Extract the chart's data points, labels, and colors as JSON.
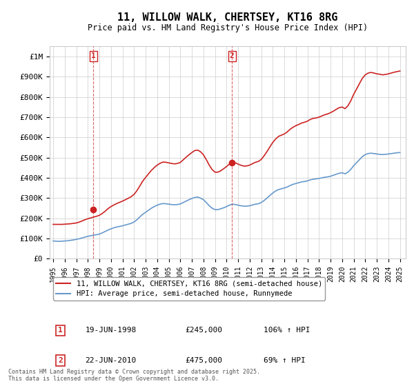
{
  "title": "11, WILLOW WALK, CHERTSEY, KT16 8RG",
  "subtitle": "Price paid vs. HM Land Registry's House Price Index (HPI)",
  "ylabel": "",
  "ylim": [
    0,
    1050000
  ],
  "yticks": [
    0,
    100000,
    200000,
    300000,
    400000,
    500000,
    600000,
    700000,
    800000,
    900000,
    1000000
  ],
  "ytick_labels": [
    "£0",
    "£100K",
    "£200K",
    "£300K",
    "£400K",
    "£500K",
    "£600K",
    "£700K",
    "£800K",
    "£900K",
    "£1M"
  ],
  "hpi_color": "#6699cc",
  "price_color": "#cc2222",
  "marker1_date": 1998.47,
  "marker1_price": 245000,
  "marker1_label": "1",
  "marker2_date": 2010.47,
  "marker2_price": 475000,
  "marker2_label": "2",
  "legend_line1": "11, WILLOW WALK, CHERTSEY, KT16 8RG (semi-detached house)",
  "legend_line2": "HPI: Average price, semi-detached house, Runnymede",
  "table_row1": [
    "1",
    "19-JUN-1998",
    "£245,000",
    "106% ↑ HPI"
  ],
  "table_row2": [
    "2",
    "22-JUN-2010",
    "£475,000",
    "69% ↑ HPI"
  ],
  "footnote": "Contains HM Land Registry data © Crown copyright and database right 2025.\nThis data is licensed under the Open Government Licence v3.0.",
  "background_color": "#ffffff",
  "grid_color": "#cccccc",
  "hpi_data": {
    "years": [
      1995.0,
      1995.25,
      1995.5,
      1995.75,
      1996.0,
      1996.25,
      1996.5,
      1996.75,
      1997.0,
      1997.25,
      1997.5,
      1997.75,
      1998.0,
      1998.25,
      1998.5,
      1998.75,
      1999.0,
      1999.25,
      1999.5,
      1999.75,
      2000.0,
      2000.25,
      2000.5,
      2000.75,
      2001.0,
      2001.25,
      2001.5,
      2001.75,
      2002.0,
      2002.25,
      2002.5,
      2002.75,
      2003.0,
      2003.25,
      2003.5,
      2003.75,
      2004.0,
      2004.25,
      2004.5,
      2004.75,
      2005.0,
      2005.25,
      2005.5,
      2005.75,
      2006.0,
      2006.25,
      2006.5,
      2006.75,
      2007.0,
      2007.25,
      2007.5,
      2007.75,
      2008.0,
      2008.25,
      2008.5,
      2008.75,
      2009.0,
      2009.25,
      2009.5,
      2009.75,
      2010.0,
      2010.25,
      2010.5,
      2010.75,
      2011.0,
      2011.25,
      2011.5,
      2011.75,
      2012.0,
      2012.25,
      2012.5,
      2012.75,
      2013.0,
      2013.25,
      2013.5,
      2013.75,
      2014.0,
      2014.25,
      2014.5,
      2014.75,
      2015.0,
      2015.25,
      2015.5,
      2015.75,
      2016.0,
      2016.25,
      2016.5,
      2016.75,
      2017.0,
      2017.25,
      2017.5,
      2017.75,
      2018.0,
      2018.25,
      2018.5,
      2018.75,
      2019.0,
      2019.25,
      2019.5,
      2019.75,
      2020.0,
      2020.25,
      2020.5,
      2020.75,
      2021.0,
      2021.25,
      2021.5,
      2021.75,
      2022.0,
      2022.25,
      2022.5,
      2022.75,
      2023.0,
      2023.25,
      2023.5,
      2023.75,
      2024.0,
      2024.25,
      2024.5,
      2024.75,
      2025.0
    ],
    "values": [
      88000,
      87000,
      86000,
      87000,
      88000,
      89000,
      91000,
      93000,
      96000,
      99000,
      103000,
      107000,
      111000,
      114000,
      117000,
      119000,
      122000,
      128000,
      135000,
      142000,
      148000,
      153000,
      157000,
      160000,
      163000,
      167000,
      171000,
      175000,
      182000,
      193000,
      207000,
      220000,
      230000,
      240000,
      250000,
      258000,
      265000,
      270000,
      273000,
      272000,
      270000,
      268000,
      267000,
      268000,
      271000,
      278000,
      285000,
      292000,
      298000,
      303000,
      305000,
      300000,
      292000,
      278000,
      262000,
      250000,
      243000,
      243000,
      247000,
      252000,
      258000,
      265000,
      270000,
      268000,
      265000,
      262000,
      260000,
      260000,
      262000,
      266000,
      270000,
      272000,
      278000,
      288000,
      300000,
      313000,
      325000,
      335000,
      342000,
      346000,
      350000,
      355000,
      362000,
      368000,
      372000,
      376000,
      380000,
      382000,
      385000,
      390000,
      393000,
      395000,
      397000,
      400000,
      403000,
      405000,
      408000,
      413000,
      418000,
      423000,
      425000,
      420000,
      428000,
      442000,
      460000,
      475000,
      490000,
      505000,
      515000,
      520000,
      522000,
      520000,
      518000,
      516000,
      515000,
      516000,
      518000,
      520000,
      522000,
      524000,
      525000
    ]
  },
  "price_data": {
    "years": [
      1995.0,
      1995.25,
      1995.5,
      1995.75,
      1996.0,
      1996.25,
      1996.5,
      1996.75,
      1997.0,
      1997.25,
      1997.5,
      1997.75,
      1998.0,
      1998.25,
      1998.5,
      1998.75,
      1999.0,
      1999.25,
      1999.5,
      1999.75,
      2000.0,
      2000.25,
      2000.5,
      2000.75,
      2001.0,
      2001.25,
      2001.5,
      2001.75,
      2002.0,
      2002.25,
      2002.5,
      2002.75,
      2003.0,
      2003.25,
      2003.5,
      2003.75,
      2004.0,
      2004.25,
      2004.5,
      2004.75,
      2005.0,
      2005.25,
      2005.5,
      2005.75,
      2006.0,
      2006.25,
      2006.5,
      2006.75,
      2007.0,
      2007.25,
      2007.5,
      2007.75,
      2008.0,
      2008.25,
      2008.5,
      2008.75,
      2009.0,
      2009.25,
      2009.5,
      2009.75,
      2010.0,
      2010.25,
      2010.5,
      2010.75,
      2011.0,
      2011.25,
      2011.5,
      2011.75,
      2012.0,
      2012.25,
      2012.5,
      2012.75,
      2013.0,
      2013.25,
      2013.5,
      2013.75,
      2014.0,
      2014.25,
      2014.5,
      2014.75,
      2015.0,
      2015.25,
      2015.5,
      2015.75,
      2016.0,
      2016.25,
      2016.5,
      2016.75,
      2017.0,
      2017.25,
      2017.5,
      2017.75,
      2018.0,
      2018.25,
      2018.5,
      2018.75,
      2019.0,
      2019.25,
      2019.5,
      2019.75,
      2020.0,
      2020.25,
      2020.5,
      2020.75,
      2021.0,
      2021.25,
      2021.5,
      2021.75,
      2022.0,
      2022.25,
      2022.5,
      2022.75,
      2023.0,
      2023.25,
      2023.5,
      2023.75,
      2024.0,
      2024.25,
      2024.5,
      2024.75,
      2025.0
    ],
    "values": [
      170000,
      170000,
      170000,
      170000,
      171000,
      172000,
      173000,
      175000,
      177000,
      181000,
      187000,
      193000,
      198000,
      202000,
      206000,
      210000,
      215000,
      224000,
      235000,
      248000,
      258000,
      266000,
      273000,
      279000,
      285000,
      292000,
      299000,
      307000,
      318000,
      337000,
      360000,
      384000,
      402000,
      420000,
      437000,
      451000,
      463000,
      472000,
      478000,
      477000,
      474000,
      471000,
      469000,
      471000,
      476000,
      489000,
      502000,
      514000,
      525000,
      535000,
      537000,
      529000,
      514000,
      490000,
      463000,
      441000,
      428000,
      428000,
      435000,
      445000,
      456000,
      468000,
      476000,
      474000,
      468000,
      462000,
      458000,
      459000,
      463000,
      470000,
      477000,
      481000,
      491000,
      509000,
      530000,
      553000,
      575000,
      592000,
      605000,
      611000,
      617000,
      627000,
      640000,
      650000,
      658000,
      664000,
      671000,
      675000,
      680000,
      689000,
      694000,
      696000,
      700000,
      706000,
      712000,
      716000,
      722000,
      730000,
      739000,
      747000,
      750000,
      742000,
      756000,
      781000,
      813000,
      839000,
      866000,
      892000,
      909000,
      918000,
      921000,
      918000,
      914000,
      912000,
      909000,
      911000,
      914000,
      918000,
      922000,
      925000,
      928000
    ]
  }
}
